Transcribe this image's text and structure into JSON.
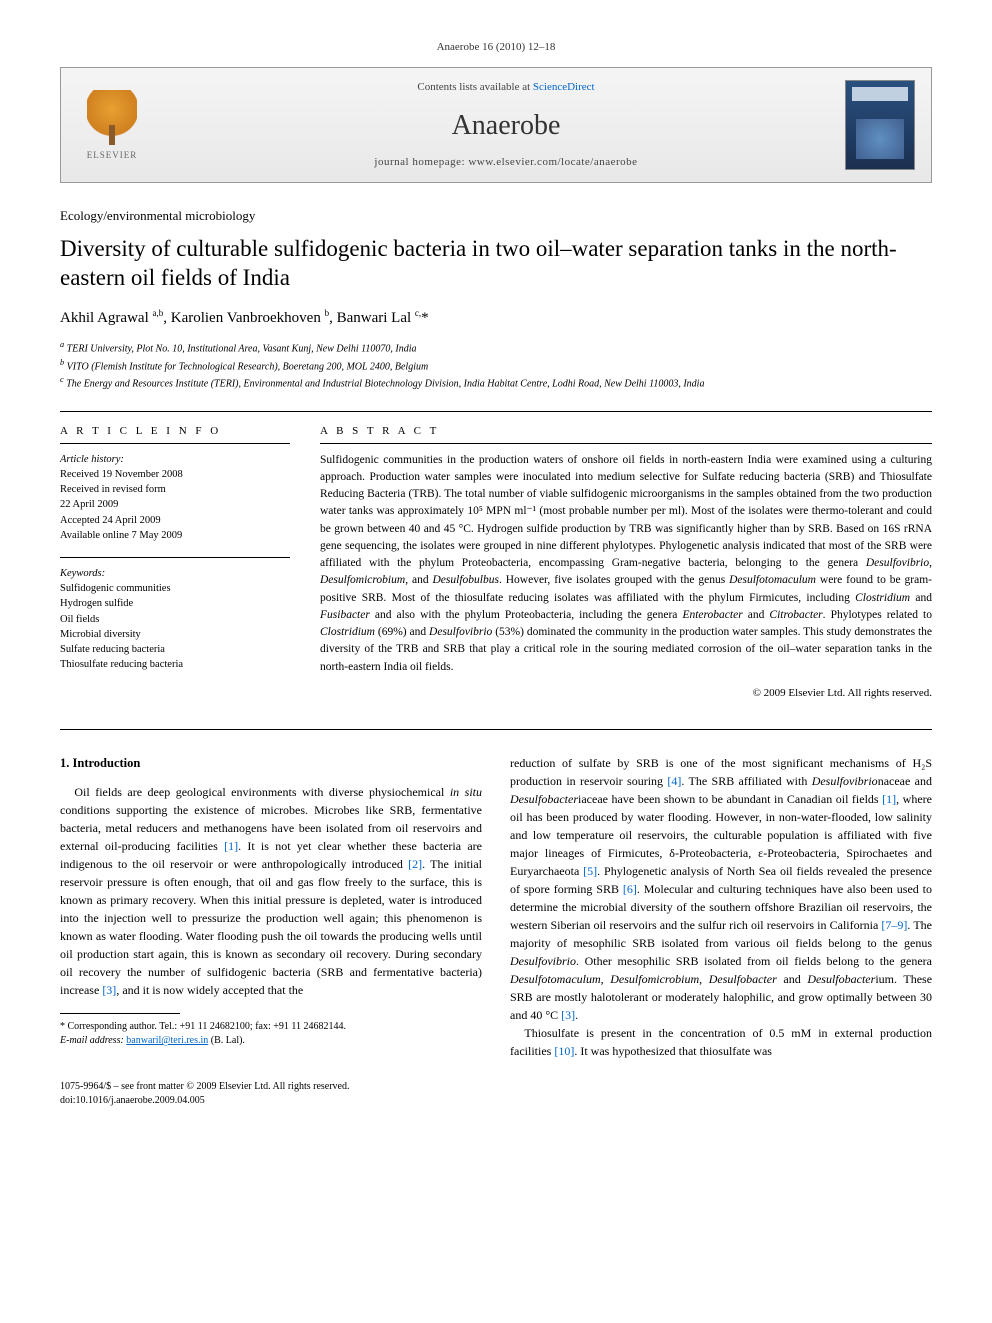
{
  "header": {
    "citation": "Anaerobe 16 (2010) 12–18"
  },
  "banner": {
    "contents_prefix": "Contents lists available at ",
    "contents_link": "ScienceDirect",
    "journal": "Anaerobe",
    "homepage_prefix": "journal homepage: ",
    "homepage_url": "www.elsevier.com/locate/anaerobe",
    "publisher": "ELSEVIER"
  },
  "article": {
    "section": "Ecology/environmental microbiology",
    "title": "Diversity of culturable sulfidogenic bacteria in two oil–water separation tanks in the north-eastern oil fields of India",
    "authors_html": "Akhil Agrawal <sup>a,b</sup>, Karolien Vanbroekhoven <sup>b</sup>, Banwari Lal <sup>c,</sup>*",
    "affiliations": {
      "a": "TERI University, Plot No. 10, Institutional Area, Vasant Kunj, New Delhi 110070, India",
      "b": "VITO (Flemish Institute for Technological Research), Boeretang 200, MOL 2400, Belgium",
      "c": "The Energy and Resources Institute (TERI), Environmental and Industrial Biotechnology Division, India Habitat Centre, Lodhi Road, New Delhi 110003, India"
    }
  },
  "info": {
    "heading": "A R T I C L E   I N F O",
    "history_label": "Article history:",
    "received": "Received 19 November 2008",
    "revised": "Received in revised form",
    "revised_date": "22 April 2009",
    "accepted": "Accepted 24 April 2009",
    "online": "Available online 7 May 2009",
    "keywords_label": "Keywords:",
    "keywords": [
      "Sulfidogenic communities",
      "Hydrogen sulfide",
      "Oil fields",
      "Microbial diversity",
      "Sulfate reducing bacteria",
      "Thiosulfate reducing bacteria"
    ]
  },
  "abstract": {
    "heading": "A B S T R A C T",
    "text": "Sulfidogenic communities in the production waters of onshore oil fields in north-eastern India were examined using a culturing approach. Production water samples were inoculated into medium selective for Sulfate reducing bacteria (SRB) and Thiosulfate Reducing Bacteria (TRB). The total number of viable sulfidogenic microorganisms in the samples obtained from the two production water tanks was approximately 10⁵ MPN ml⁻¹ (most probable number per ml). Most of the isolates were thermo-tolerant and could be grown between 40 and 45 °C. Hydrogen sulfide production by TRB was significantly higher than by SRB. Based on 16S rRNA gene sequencing, the isolates were grouped in nine different phylotypes. Phylogenetic analysis indicated that most of the SRB were affiliated with the phylum Proteobacteria, encompassing Gram-negative bacteria, belonging to the genera Desulfovibrio, Desulfomicrobium, and Desulfobulbus. However, five isolates grouped with the genus Desulfotomaculum were found to be gram-positive SRB. Most of the thiosulfate reducing isolates was affiliated with the phylum Firmicutes, including Clostridium and Fusibacter and also with the phylum Proteobacteria, including the genera Enterobacter and Citrobacter. Phylotypes related to Clostridium (69%) and Desulfovibrio (53%) dominated the community in the production water samples. This study demonstrates the diversity of the TRB and SRB that play a critical role in the souring mediated corrosion of the oil–water separation tanks in the north-eastern India oil fields.",
    "copyright": "© 2009 Elsevier Ltd. All rights reserved."
  },
  "body": {
    "heading1": "1. Introduction",
    "para1": "Oil fields are deep geological environments with diverse physiochemical in situ conditions supporting the existence of microbes. Microbes like SRB, fermentative bacteria, metal reducers and methanogens have been isolated from oil reservoirs and external oil-producing facilities [1]. It is not yet clear whether these bacteria are indigenous to the oil reservoir or were anthropologically introduced [2]. The initial reservoir pressure is often enough, that oil and gas flow freely to the surface, this is known as primary recovery. When this initial pressure is depleted, water is introduced into the injection well to pressurize the production well again; this phenomenon is known as water flooding. Water flooding push the oil towards the producing wells until oil production start again, this is known as secondary oil recovery. During secondary oil recovery the number of sulfidogenic bacteria (SRB and fermentative bacteria) increase [3], and it is now widely accepted that the",
    "para2": "reduction of sulfate by SRB is one of the most significant mechanisms of H₂S production in reservoir souring [4]. The SRB affiliated with Desulfovibrionaceae and Desulfobacteriaceae have been shown to be abundant in Canadian oil fields [1], where oil has been produced by water flooding. However, in non-water-flooded, low salinity and low temperature oil reservoirs, the culturable population is affiliated with five major lineages of Firmicutes, δ-Proteobacteria, ε-Proteobacteria, Spirochaetes and Euryarchaeota [5]. Phylogenetic analysis of North Sea oil fields revealed the presence of spore forming SRB [6]. Molecular and culturing techniques have also been used to determine the microbial diversity of the southern offshore Brazilian oil reservoirs, the western Siberian oil reservoirs and the sulfur rich oil reservoirs in California [7–9]. The majority of mesophilic SRB isolated from various oil fields belong to the genus Desulfovibrio. Other mesophilic SRB isolated from oil fields belong to the genera Desulfotomaculum, Desulfomicrobium, Desulfobacter and Desulfobacterium. These SRB are mostly halotolerant or moderately halophilic, and grow optimally between 30 and 40 °C [3].",
    "para3": "Thiosulfate is present in the concentration of 0.5 mM in external production facilities [10]. It was hypothesized that thiosulfate was"
  },
  "footnote": {
    "corr": "* Corresponding author. Tel.: +91 11 24682100; fax: +91 11 24682144.",
    "email_label": "E-mail address:",
    "email": "banwaril@teri.res.in",
    "email_who": "(B. Lal)."
  },
  "footer": {
    "issn": "1075-9964/$ – see front matter © 2009 Elsevier Ltd. All rights reserved.",
    "doi": "doi:10.1016/j.anaerobe.2009.04.005"
  },
  "colors": {
    "link": "#0066cc",
    "text": "#000000",
    "banner_bg_top": "#f5f5f5",
    "banner_bg_bottom": "#e8e8e8"
  }
}
